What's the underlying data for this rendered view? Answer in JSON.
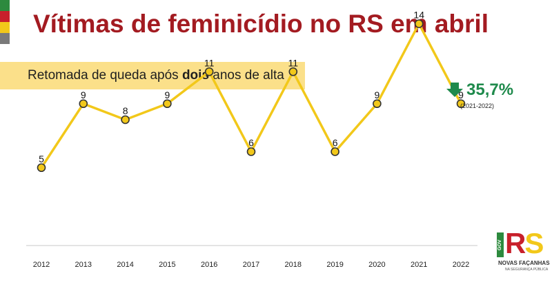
{
  "header": {
    "title": "Vítimas de feminicídio no RS em abril",
    "subtitle_pre": "Retomada de queda após ",
    "subtitle_bold": "dois",
    "subtitle_post": " anos de alta",
    "subtitle_band_color": "#fbe08a",
    "title_color": "#a31b21"
  },
  "flag_colors": [
    "#2d8a3e",
    "#c8202b",
    "#f2c81a",
    "#7a7a7a"
  ],
  "change": {
    "value": "35,7%",
    "period": "(2021-2022)",
    "direction": "down",
    "color": "#1f8a4c",
    "icon": "arrow-down-icon"
  },
  "chart_data": {
    "type": "line",
    "categories": [
      "2012",
      "2013",
      "2014",
      "2015",
      "2016",
      "2017",
      "2018",
      "2019",
      "2020",
      "2021",
      "2022"
    ],
    "values": [
      5,
      9,
      8,
      9,
      11,
      6,
      11,
      6,
      9,
      14,
      9
    ],
    "data_labels": [
      "5",
      "9",
      "8",
      "9",
      "11",
      "6",
      "11",
      "6",
      "9",
      "14",
      "9"
    ],
    "ylim": [
      0,
      16
    ],
    "line_color": "#f2c81a",
    "marker_color": "#f2c81a",
    "marker_edge_color": "#333333",
    "grid": false,
    "legend": "none"
  },
  "logo": {
    "gov": "GOV",
    "r": "R",
    "s": "S",
    "name": "NOVAS FAÇANHAS",
    "sub": "NA SEGURANÇA PÚBLICA"
  }
}
